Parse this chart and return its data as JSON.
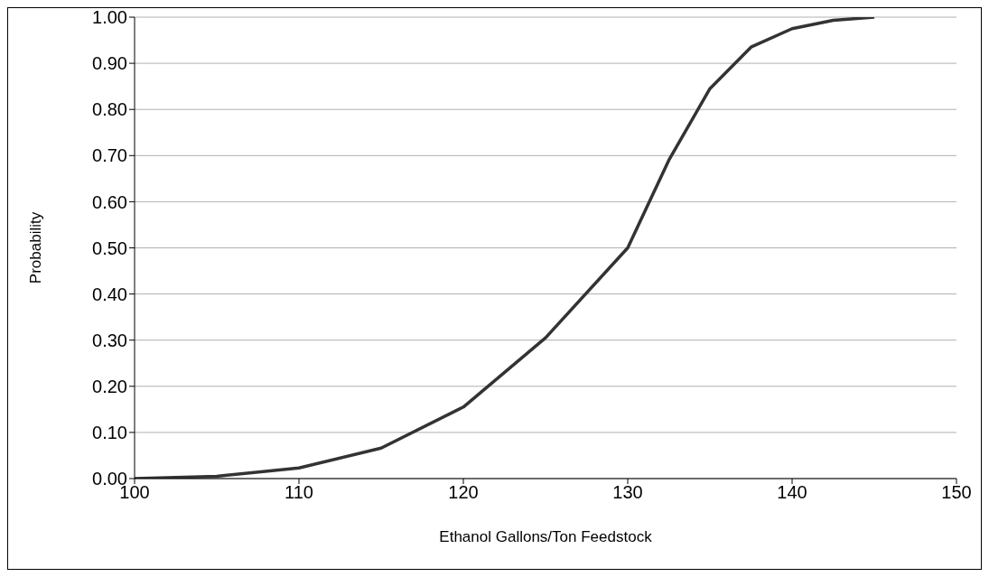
{
  "chart_data": {
    "type": "line",
    "xlabel": "Ethanol Gallons/Ton Feedstock",
    "ylabel": "Probability",
    "x": [
      100,
      105,
      110,
      115,
      120,
      125,
      130,
      132.5,
      135,
      137.5,
      140,
      142.5,
      145
    ],
    "series": [
      {
        "color": "#333333",
        "values": [
          0,
          0.005,
          0.023,
          0.066,
          0.155,
          0.305,
          0.5,
          0.69,
          0.845,
          0.935,
          0.975,
          0.993,
          1.0
        ]
      }
    ],
    "xlim": [
      100,
      150
    ],
    "xticks": [
      100,
      110,
      120,
      130,
      140,
      150
    ],
    "ylim": [
      0,
      1
    ],
    "yticks": [
      {
        "value": 0,
        "label": "0.00"
      },
      {
        "value": 0.1,
        "label": "0.10"
      },
      {
        "value": 0.2,
        "label": "0.20"
      },
      {
        "value": 0.3,
        "label": "0.30"
      },
      {
        "value": 0.4,
        "label": "0.40"
      },
      {
        "value": 0.5,
        "label": "0.50"
      },
      {
        "value": 0.6,
        "label": "0.60"
      },
      {
        "value": 0.7,
        "label": "0.70"
      },
      {
        "value": 0.8,
        "label": "0.80"
      },
      {
        "value": 0.9,
        "label": "0.90"
      },
      {
        "value": 1,
        "label": "1.00"
      }
    ],
    "grid": "y"
  }
}
